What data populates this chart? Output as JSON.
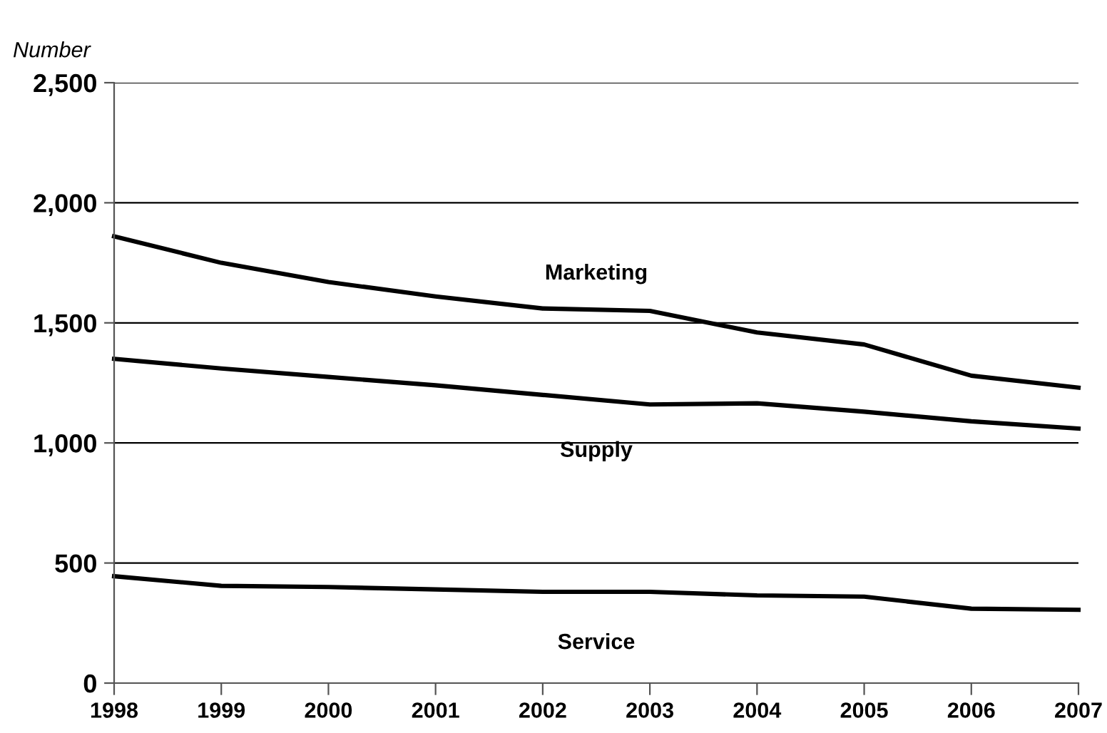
{
  "chart_data": {
    "type": "line",
    "ylabel": "Number",
    "x": [
      1998,
      1999,
      2000,
      2001,
      2002,
      2003,
      2004,
      2005,
      2006,
      2007
    ],
    "series": [
      {
        "name": "Marketing",
        "color": "#000000",
        "values": [
          1860,
          1750,
          1670,
          1610,
          1560,
          1550,
          1460,
          1410,
          1280,
          1230
        ]
      },
      {
        "name": "Supply",
        "color": "#000000",
        "values": [
          1350,
          1310,
          1275,
          1240,
          1200,
          1160,
          1165,
          1130,
          1090,
          1060
        ]
      },
      {
        "name": "Service",
        "color": "#000000",
        "values": [
          445,
          405,
          400,
          390,
          380,
          380,
          365,
          360,
          310,
          305
        ]
      }
    ],
    "xlim": [
      1998,
      2007
    ],
    "xticks": [
      1998,
      1999,
      2000,
      2001,
      2002,
      2003,
      2004,
      2005,
      2006,
      2007
    ],
    "ylim": [
      0,
      2500
    ],
    "yticks": [
      {
        "value": 0,
        "label": "0"
      },
      {
        "value": 500,
        "label": "500"
      },
      {
        "value": 1000,
        "label": "1,000"
      },
      {
        "value": 1500,
        "label": "1,500"
      },
      {
        "value": 2000,
        "label": "2,000"
      },
      {
        "value": 2500,
        "label": "2,500"
      }
    ],
    "grid": "y",
    "legend": false,
    "marker": "none",
    "line_style": "solid"
  }
}
